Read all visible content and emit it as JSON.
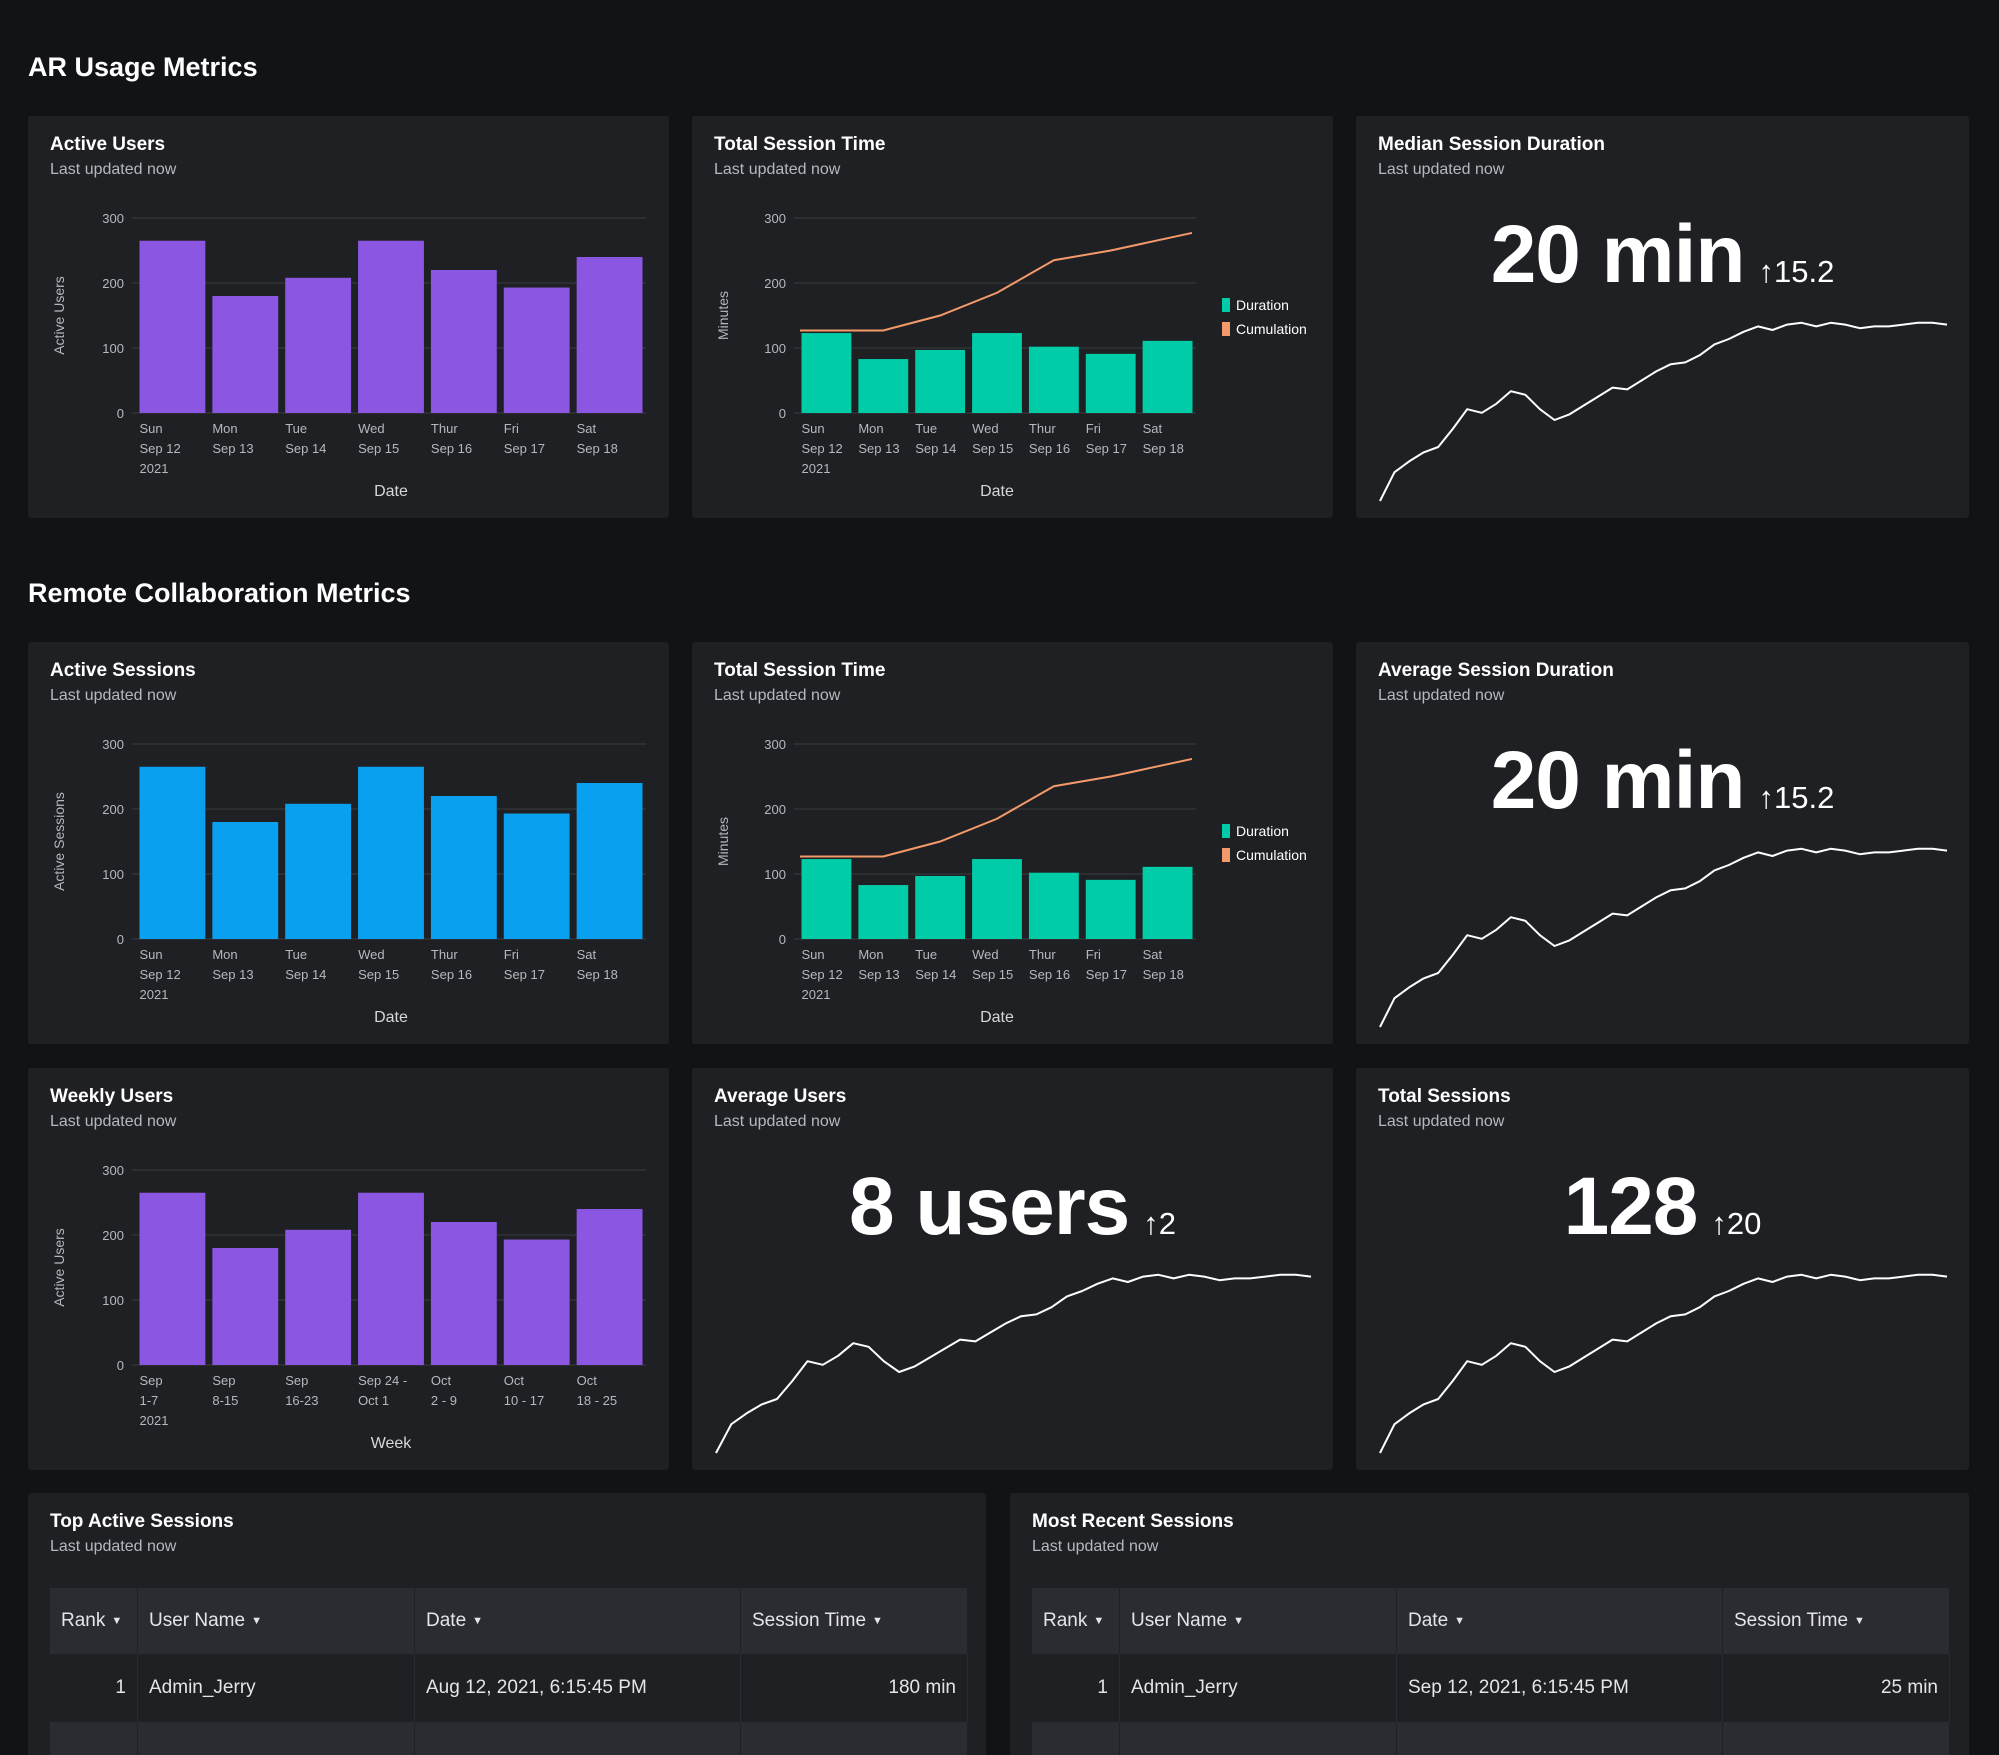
{
  "sections": {
    "ar": "AR Usage Metrics",
    "remote": "Remote Collaboration Metrics"
  },
  "colors": {
    "purple": "#8a56e2",
    "blue": "#0aa0f0",
    "teal": "#00cca8",
    "orange": "#f49a6a"
  },
  "cards": {
    "ar_active_users": {
      "title": "Active Users",
      "subtitle": "Last updated now"
    },
    "ar_total_session_time": {
      "title": "Total Session Time",
      "subtitle": "Last updated now"
    },
    "ar_median_duration": {
      "title": "Median Session Duration",
      "subtitle": "Last updated now",
      "value": "20 min",
      "delta": "15.2"
    },
    "rc_active_sessions": {
      "title": "Active Sessions",
      "subtitle": "Last updated now"
    },
    "rc_total_session_time": {
      "title": "Total Session Time",
      "subtitle": "Last updated now"
    },
    "rc_average_duration": {
      "title": "Average Session Duration",
      "subtitle": "Last updated now",
      "value": "20 min",
      "delta": "15.2"
    },
    "rc_weekly_users": {
      "title": "Weekly Users",
      "subtitle": "Last updated now"
    },
    "rc_average_users": {
      "title": "Average Users",
      "subtitle": "Last updated now",
      "value": "8 users",
      "delta": "2"
    },
    "rc_total_sessions": {
      "title": "Total Sessions",
      "subtitle": "Last updated now",
      "value": "128",
      "delta": "20"
    }
  },
  "chart_data": [
    {
      "id": "ar_active_users",
      "type": "bar",
      "color": "#8a56e2",
      "categories": [
        [
          "Sun",
          "Sep 12",
          "2021"
        ],
        [
          "Mon",
          "Sep 13"
        ],
        [
          "Tue",
          "Sep 14"
        ],
        [
          "Wed",
          "Sep 15"
        ],
        [
          "Thur",
          "Sep 16"
        ],
        [
          "Fri",
          "Sep 17"
        ],
        [
          "Sat",
          "Sep 18"
        ]
      ],
      "values": [
        265,
        180,
        208,
        265,
        220,
        193,
        240
      ],
      "xlabel": "Date",
      "ylabel": "Active Users",
      "ylim": [
        0,
        300
      ],
      "yticks": [
        0,
        100,
        200,
        300
      ],
      "grid": true
    },
    {
      "id": "ar_total_session_time",
      "type": "bar+line",
      "categories": [
        [
          "Sun",
          "Sep 12",
          "2021"
        ],
        [
          "Mon",
          "Sep 13"
        ],
        [
          "Tue",
          "Sep 14"
        ],
        [
          "Wed",
          "Sep 15"
        ],
        [
          "Thur",
          "Sep 16"
        ],
        [
          "Fri",
          "Sep 17"
        ],
        [
          "Sat",
          "Sep 18"
        ]
      ],
      "series": [
        {
          "name": "Duration",
          "type": "bar",
          "color": "#00cca8",
          "values": [
            123,
            83,
            97,
            123,
            102,
            91,
            111
          ]
        },
        {
          "name": "Cumulation",
          "type": "line",
          "color": "#f49a6a",
          "values": [
            127,
            127,
            150,
            185,
            235,
            250,
            277
          ]
        }
      ],
      "xlabel": "Date",
      "ylabel": "Minutes",
      "ylim": [
        0,
        300
      ],
      "yticks": [
        0,
        100,
        200,
        300
      ],
      "legend": "right",
      "grid": true
    },
    {
      "id": "ar_median_duration",
      "type": "line",
      "color": "#ffffff",
      "axes": false,
      "values": [
        0,
        16,
        22,
        27,
        30,
        40,
        51,
        49,
        54,
        61,
        59,
        51,
        45,
        48,
        53,
        58,
        63,
        62,
        67,
        72,
        76,
        77,
        81,
        87,
        90,
        94,
        97,
        95,
        98,
        99,
        97,
        99,
        98,
        96,
        97,
        97,
        98,
        99,
        99,
        98
      ]
    },
    {
      "id": "rc_active_sessions",
      "type": "bar",
      "color": "#0aa0f0",
      "categories": [
        [
          "Sun",
          "Sep 12",
          "2021"
        ],
        [
          "Mon",
          "Sep 13"
        ],
        [
          "Tue",
          "Sep 14"
        ],
        [
          "Wed",
          "Sep 15"
        ],
        [
          "Thur",
          "Sep 16"
        ],
        [
          "Fri",
          "Sep 17"
        ],
        [
          "Sat",
          "Sep 18"
        ]
      ],
      "values": [
        265,
        180,
        208,
        265,
        220,
        193,
        240
      ],
      "xlabel": "Date",
      "ylabel": "Active Sessions",
      "ylim": [
        0,
        300
      ],
      "yticks": [
        0,
        100,
        200,
        300
      ],
      "grid": true
    },
    {
      "id": "rc_total_session_time",
      "type": "bar+line",
      "categories": [
        [
          "Sun",
          "Sep 12",
          "2021"
        ],
        [
          "Mon",
          "Sep 13"
        ],
        [
          "Tue",
          "Sep 14"
        ],
        [
          "Wed",
          "Sep 15"
        ],
        [
          "Thur",
          "Sep 16"
        ],
        [
          "Fri",
          "Sep 17"
        ],
        [
          "Sat",
          "Sep 18"
        ]
      ],
      "series": [
        {
          "name": "Duration",
          "type": "bar",
          "color": "#00cca8",
          "values": [
            123,
            83,
            97,
            123,
            102,
            91,
            111
          ]
        },
        {
          "name": "Cumulation",
          "type": "line",
          "color": "#f49a6a",
          "values": [
            127,
            127,
            150,
            185,
            235,
            250,
            277
          ]
        }
      ],
      "xlabel": "Date",
      "ylabel": "Minutes",
      "ylim": [
        0,
        300
      ],
      "yticks": [
        0,
        100,
        200,
        300
      ],
      "legend": "right",
      "grid": true
    },
    {
      "id": "rc_average_duration",
      "type": "line",
      "color": "#ffffff",
      "axes": false,
      "values": [
        0,
        16,
        22,
        27,
        30,
        40,
        51,
        49,
        54,
        61,
        59,
        51,
        45,
        48,
        53,
        58,
        63,
        62,
        67,
        72,
        76,
        77,
        81,
        87,
        90,
        94,
        97,
        95,
        98,
        99,
        97,
        99,
        98,
        96,
        97,
        97,
        98,
        99,
        99,
        98
      ]
    },
    {
      "id": "rc_weekly_users",
      "type": "bar",
      "color": "#8a56e2",
      "categories": [
        [
          "Sep",
          "1-7",
          "2021"
        ],
        [
          "Sep",
          "8-15"
        ],
        [
          "Sep",
          "16-23"
        ],
        [
          "Sep 24 -",
          "Oct 1"
        ],
        [
          "Oct",
          "2 - 9"
        ],
        [
          "Oct",
          "10 - 17"
        ],
        [
          "Oct",
          "18 - 25"
        ]
      ],
      "values": [
        265,
        180,
        208,
        265,
        220,
        193,
        240
      ],
      "xlabel": "Week",
      "ylabel": "Active Users",
      "ylim": [
        0,
        300
      ],
      "yticks": [
        0,
        100,
        200,
        300
      ],
      "grid": true
    },
    {
      "id": "rc_average_users",
      "type": "line",
      "color": "#ffffff",
      "axes": false,
      "values": [
        0,
        16,
        22,
        27,
        30,
        40,
        51,
        49,
        54,
        61,
        59,
        51,
        45,
        48,
        53,
        58,
        63,
        62,
        67,
        72,
        76,
        77,
        81,
        87,
        90,
        94,
        97,
        95,
        98,
        99,
        97,
        99,
        98,
        96,
        97,
        97,
        98,
        99,
        99,
        98
      ]
    },
    {
      "id": "rc_total_sessions",
      "type": "line",
      "color": "#ffffff",
      "axes": false,
      "values": [
        0,
        16,
        22,
        27,
        30,
        40,
        51,
        49,
        54,
        61,
        59,
        51,
        45,
        48,
        53,
        58,
        63,
        62,
        67,
        72,
        76,
        77,
        81,
        87,
        90,
        94,
        97,
        95,
        98,
        99,
        97,
        99,
        98,
        96,
        97,
        97,
        98,
        99,
        99,
        98
      ]
    }
  ],
  "tables": {
    "top_active": {
      "title": "Top Active Sessions",
      "subtitle": "Last updated now",
      "columns": [
        "Rank",
        "User Name",
        "Date",
        "Session Time"
      ],
      "rows": [
        [
          "1",
          "Admin_Jerry",
          "Aug 12, 2021, 6:15:45 PM",
          "180 min"
        ]
      ]
    },
    "most_recent": {
      "title": "Most Recent Sessions",
      "subtitle": "Last updated now",
      "columns": [
        "Rank",
        "User Name",
        "Date",
        "Session Time"
      ],
      "rows": [
        [
          "1",
          "Admin_Jerry",
          "Sep 12, 2021, 6:15:45 PM",
          "25 min"
        ]
      ]
    }
  }
}
